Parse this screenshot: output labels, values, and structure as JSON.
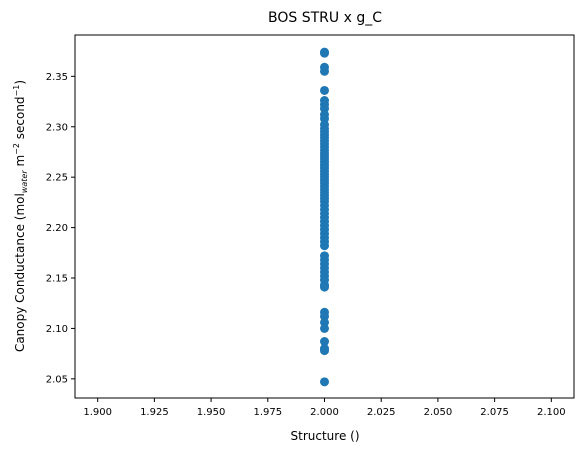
{
  "chart_data": {
    "type": "scatter",
    "title": "BOS STRU x g_C",
    "xlabel": "Structure ()",
    "ylabel": {
      "prefix": "Canopy Conductance (mol",
      "sub": "water",
      "mid1": " m",
      "sup1": "−2",
      "mid2": " second",
      "sup2": "−1",
      "suffix": ")"
    },
    "xlim": [
      1.89,
      2.11
    ],
    "ylim": [
      2.031,
      2.391
    ],
    "x_ticks": [
      "1.900",
      "1.925",
      "1.950",
      "1.975",
      "2.000",
      "2.025",
      "2.050",
      "2.075",
      "2.100"
    ],
    "x_tick_values": [
      1.9,
      1.925,
      1.95,
      1.975,
      2.0,
      2.025,
      2.05,
      2.075,
      2.1
    ],
    "y_ticks": [
      "2.05",
      "2.10",
      "2.15",
      "2.20",
      "2.25",
      "2.30",
      "2.35"
    ],
    "y_tick_values": [
      2.05,
      2.1,
      2.15,
      2.2,
      2.25,
      2.3,
      2.35
    ],
    "marker_color": "#1f77b4",
    "grid": false,
    "x": [
      2.0,
      2.0,
      2.0,
      2.0,
      2.0,
      2.0,
      2.0,
      2.0,
      2.0,
      2.0,
      2.0,
      2.0,
      2.0,
      2.0,
      2.0,
      2.0,
      2.0,
      2.0,
      2.0,
      2.0,
      2.0,
      2.0,
      2.0,
      2.0,
      2.0,
      2.0,
      2.0,
      2.0,
      2.0,
      2.0,
      2.0,
      2.0,
      2.0,
      2.0,
      2.0,
      2.0,
      2.0,
      2.0,
      2.0,
      2.0,
      2.0,
      2.0,
      2.0,
      2.0,
      2.0,
      2.0,
      2.0,
      2.0,
      2.0,
      2.0,
      2.0,
      2.0,
      2.0,
      2.0,
      2.0,
      2.0,
      2.0,
      2.0,
      2.0,
      2.0,
      2.0,
      2.0,
      2.0,
      2.0
    ],
    "y": [
      2.374,
      2.373,
      2.359,
      2.355,
      2.336,
      2.326,
      2.322,
      2.318,
      2.312,
      2.308,
      2.302,
      2.298,
      2.295,
      2.292,
      2.289,
      2.286,
      2.283,
      2.28,
      2.277,
      2.274,
      2.271,
      2.268,
      2.265,
      2.262,
      2.259,
      2.256,
      2.253,
      2.25,
      2.247,
      2.244,
      2.241,
      2.238,
      2.235,
      2.232,
      2.229,
      2.226,
      2.222,
      2.218,
      2.214,
      2.21,
      2.206,
      2.202,
      2.198,
      2.194,
      2.19,
      2.186,
      2.182,
      2.172,
      2.168,
      2.164,
      2.16,
      2.156,
      2.152,
      2.148,
      2.143,
      2.141,
      2.116,
      2.112,
      2.106,
      2.1,
      2.087,
      2.08,
      2.078,
      2.047
    ]
  }
}
